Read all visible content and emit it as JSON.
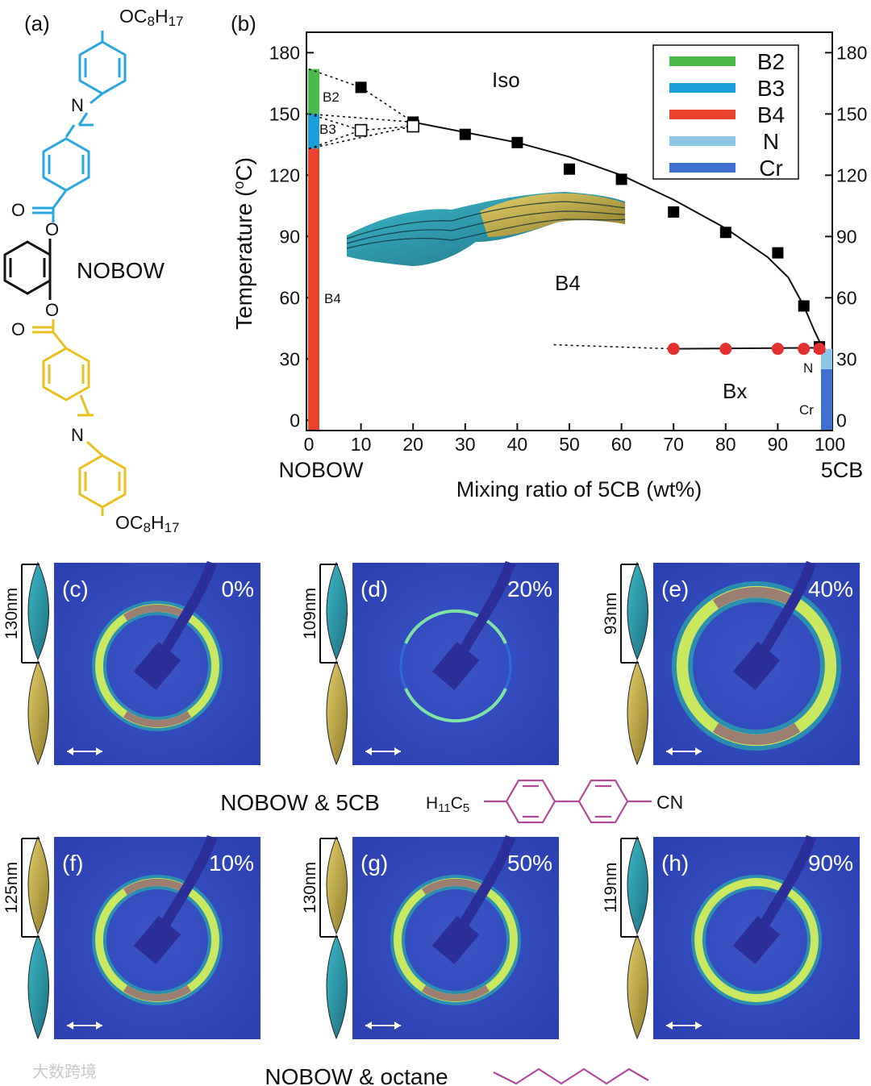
{
  "panel_labels": {
    "a": "(a)",
    "b": "(b)",
    "c": "(c)",
    "d": "(d)",
    "e": "(e)",
    "f": "(f)",
    "g": "(g)",
    "h": "(h)"
  },
  "molecule": {
    "name": "NOBOW",
    "top_chain": "OC8H17",
    "bottom_chain": "OC8H17",
    "n_label": "N",
    "o_label": "O",
    "blue": "#29a8e0",
    "yellow": "#e8c020"
  },
  "chart_data": {
    "type": "scatter",
    "title": "",
    "xlabel": "Mixing ratio of 5CB (wt%)",
    "ylabel": "Temperature (°C)",
    "xlim": [
      0,
      100
    ],
    "ylim": [
      -5,
      190
    ],
    "x_ticks": [
      0,
      10,
      20,
      30,
      40,
      50,
      60,
      70,
      80,
      90,
      100
    ],
    "y_ticks": [
      0,
      30,
      60,
      90,
      120,
      150,
      180
    ],
    "left_end_label": "NOBOW",
    "right_end_label": "5CB",
    "series": [
      {
        "name": "Iso transition (filled squares)",
        "marker": "square-filled",
        "color": "#000000",
        "x": [
          10,
          20,
          30,
          40,
          50,
          60,
          70,
          80,
          90,
          95,
          98
        ],
        "y": [
          163,
          146,
          140,
          136,
          123,
          118,
          102,
          92,
          82,
          56,
          36
        ]
      },
      {
        "name": "B3 transition (open squares)",
        "marker": "square-open",
        "color": "#000000",
        "x": [
          10,
          20
        ],
        "y": [
          142,
          144
        ]
      },
      {
        "name": "Bx transition (red circles)",
        "marker": "circle",
        "color": "#e53030",
        "x": [
          70,
          80,
          90,
          95,
          98
        ],
        "y": [
          35,
          35,
          35,
          35,
          35
        ]
      }
    ],
    "phase_bars": [
      {
        "name": "B2",
        "x": 0,
        "from": 150,
        "to": 172,
        "color": "#4cbb4c"
      },
      {
        "name": "B3",
        "x": 0,
        "from": 133,
        "to": 150,
        "color": "#1a9edc"
      },
      {
        "name": "B4",
        "x": 0,
        "from": -5,
        "to": 133,
        "color": "#e8432d"
      },
      {
        "name": "N",
        "x": 100,
        "from": 25,
        "to": 35,
        "color": "#8ec6e8"
      },
      {
        "name": "Cr",
        "x": 100,
        "from": -5,
        "to": 25,
        "color": "#3f6fcf"
      }
    ],
    "legend": [
      {
        "label": "B2",
        "color": "#4cbb4c"
      },
      {
        "label": "B3",
        "color": "#1a9edc"
      },
      {
        "label": "B4",
        "color": "#e8432d"
      },
      {
        "label": "N",
        "color": "#8ec6e8"
      },
      {
        "label": "Cr",
        "color": "#3f6fcf"
      }
    ],
    "annotations": {
      "iso": "Iso",
      "b4": "B4",
      "bx": "Bx",
      "b2_small": "B2",
      "b3_small": "B3",
      "b4_small": "B4",
      "n_small": "N",
      "cr_small": "Cr"
    }
  },
  "patterns": [
    {
      "label": "(c)",
      "percent": "0%",
      "pitch": "130nm"
    },
    {
      "label": "(d)",
      "percent": "20%",
      "pitch": "109nm"
    },
    {
      "label": "(e)",
      "percent": "40%",
      "pitch": "93nm"
    },
    {
      "label": "(f)",
      "percent": "10%",
      "pitch": "125nm"
    },
    {
      "label": "(g)",
      "percent": "50%",
      "pitch": "130nm"
    },
    {
      "label": "(h)",
      "percent": "90%",
      "pitch": "119nm"
    }
  ],
  "captions": {
    "mix_5cb": "NOBOW & 5CB",
    "mix_octane": "NOBOW & octane",
    "formula_left": "H11C5",
    "formula_right": "CN",
    "watermark": "大数跨境"
  }
}
